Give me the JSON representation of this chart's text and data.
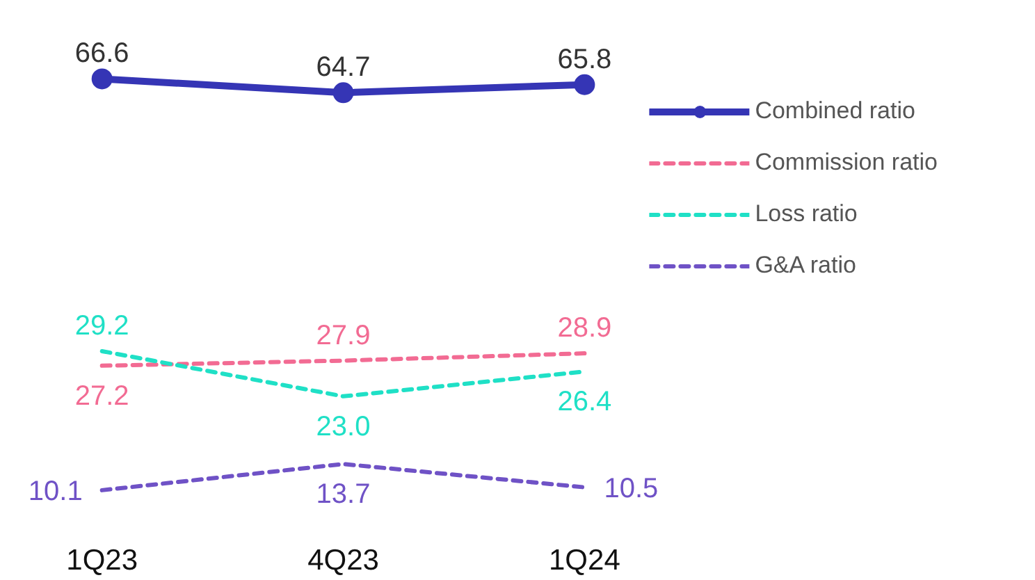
{
  "chart_data": {
    "type": "line",
    "categories": [
      "1Q23",
      "4Q23",
      "1Q24"
    ],
    "legend": "top right",
    "grid": false,
    "series": [
      {
        "name": "Combined ratio",
        "color": "#3535b5",
        "values": [
          66.6,
          64.7,
          65.8
        ],
        "value_labels": [
          "66.6",
          "64.7",
          "65.8"
        ],
        "marker": "circle",
        "line_style": "solid"
      },
      {
        "name": "Commission ratio",
        "color": "#f26b93",
        "values": [
          27.2,
          27.9,
          28.9
        ],
        "value_labels": [
          "27.2",
          "27.9",
          "28.9"
        ],
        "marker": "none",
        "line_style": "dashed"
      },
      {
        "name": "Loss ratio",
        "color": "#1fe0c6",
        "values": [
          29.2,
          23.0,
          26.4
        ],
        "value_labels": [
          "29.2",
          "23.0",
          "26.4"
        ],
        "marker": "none",
        "line_style": "dashed"
      },
      {
        "name": "G&A ratio",
        "color": "#6f52c6",
        "values": [
          10.1,
          13.7,
          10.5
        ],
        "value_labels": [
          "10.1",
          "13.7",
          "10.5"
        ],
        "marker": "none",
        "line_style": "dashed"
      }
    ]
  }
}
